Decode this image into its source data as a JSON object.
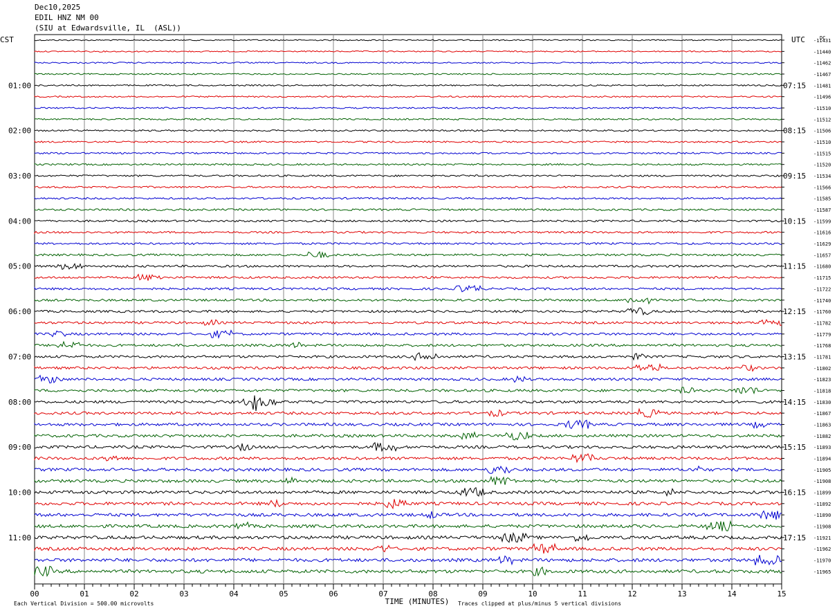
{
  "header": {
    "date": "Dec10,2025",
    "station": "EDIL HNZ NM 00",
    "location": "(SIU at Edwardsville, IL  (ASL))"
  },
  "left_zone": "CST",
  "right_zone": "UTC",
  "dc_label": "DC",
  "xlabel": "TIME (MINUTES)",
  "footer_left": "Each Vertical Division =  500.00 microvolts",
  "footer_right": "Traces clipped at plus/minus 5 vertical divisions",
  "chart_data": {
    "type": "line",
    "x_ticks": [
      "00",
      "01",
      "02",
      "03",
      "04",
      "05",
      "06",
      "07",
      "08",
      "09",
      "10",
      "11",
      "12",
      "13",
      "14",
      "15"
    ],
    "xlim": [
      0,
      15
    ],
    "left_hour_labels": [
      "01:00",
      "02:00",
      "03:00",
      "04:00",
      "05:00",
      "06:00",
      "07:00",
      "08:00",
      "09:00",
      "10:00",
      "11:00"
    ],
    "right_hour_labels": [
      "07:15",
      "08:15",
      "09:15",
      "10:15",
      "11:15",
      "12:15",
      "13:15",
      "14:15",
      "15:15",
      "16:15",
      "17:15"
    ],
    "trace_colors": [
      "#000000",
      "#e00000",
      "#0000d0",
      "#006000"
    ],
    "dc_offsets": [
      -11431,
      -11440,
      -11462,
      -11467,
      -11481,
      -11496,
      -11510,
      -11512,
      -11506,
      -11510,
      -11515,
      -11520,
      -11534,
      -11566,
      -11585,
      -11587,
      -11599,
      -11616,
      -11629,
      -11657,
      -11680,
      -11715,
      -11722,
      -11740,
      -11760,
      -11782,
      -11779,
      -11768,
      -11781,
      -11802,
      -11823,
      -11818,
      -11830,
      -11867,
      -11863,
      -11882,
      -11893,
      -11894,
      -11905,
      -11908,
      -11899,
      -11892,
      -11890,
      -11908,
      -11921,
      -11962,
      -11970,
      -11965
    ]
  }
}
